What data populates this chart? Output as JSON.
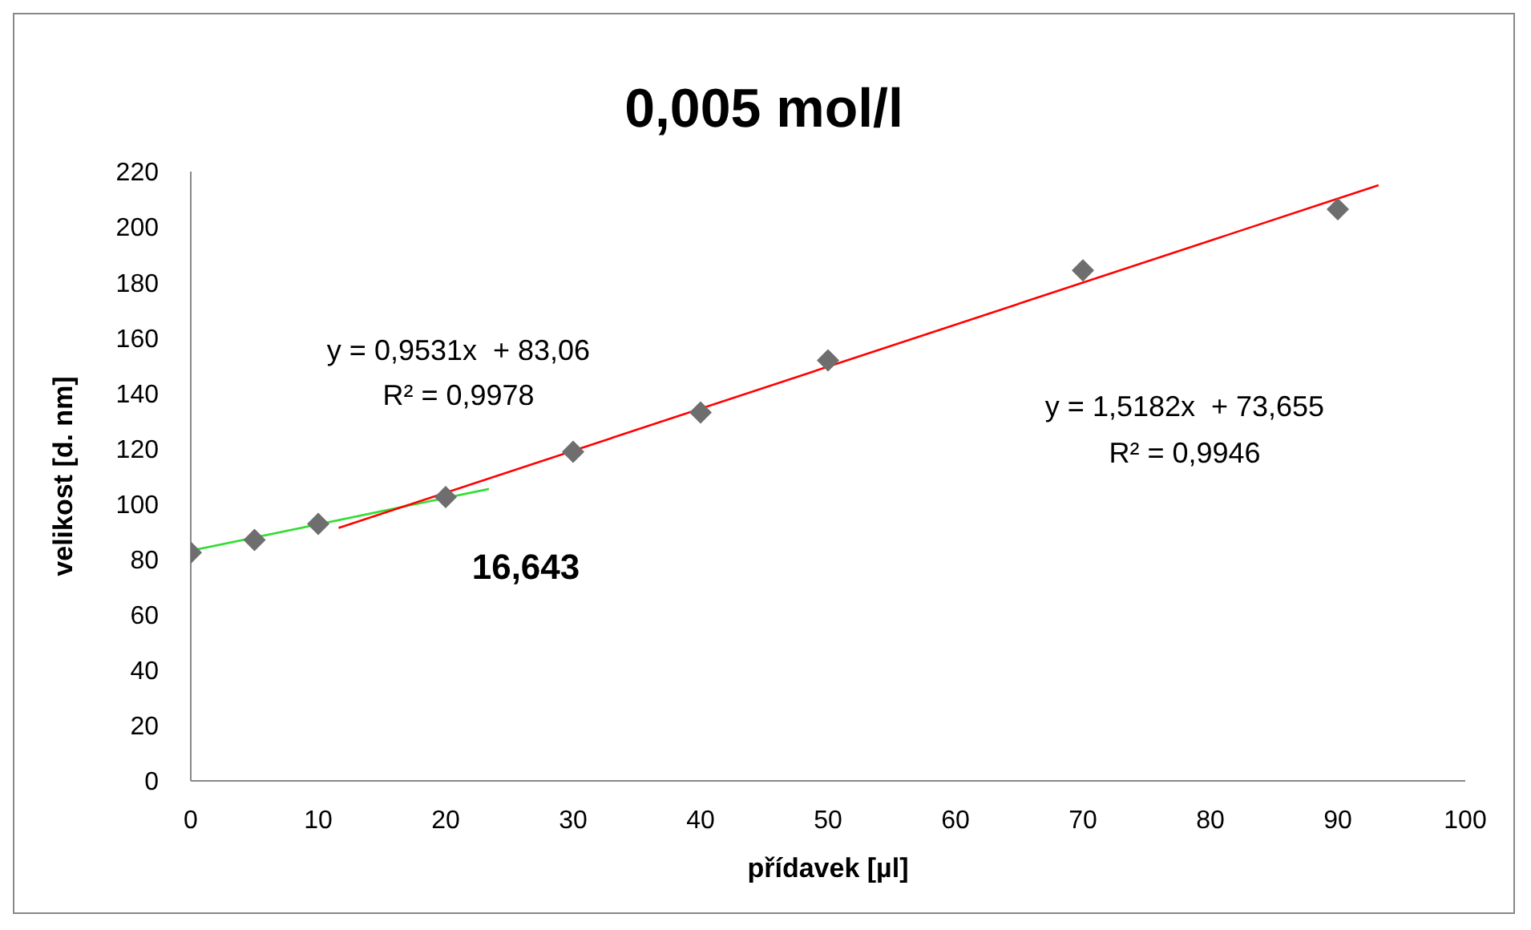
{
  "chart_data": {
    "type": "scatter",
    "title": "0,005 mol/l",
    "xlabel": "přídavek [µl]",
    "ylabel": "velikost [d. nm]",
    "xlim": [
      0,
      100
    ],
    "xticks": [
      0,
      10,
      20,
      30,
      40,
      50,
      60,
      70,
      80,
      90,
      100
    ],
    "ylim": [
      0,
      220
    ],
    "yticks": [
      0,
      20,
      40,
      60,
      80,
      100,
      120,
      140,
      160,
      180,
      200,
      220
    ],
    "grid": false,
    "marker": "diamond",
    "series": [
      {
        "type": "line",
        "color": "#33dd33",
        "marker": "none",
        "x": [
          0,
          23.4
        ],
        "values": [
          83.1,
          105.4
        ]
      },
      {
        "type": "line",
        "color": "#ff0000",
        "marker": "none",
        "x": [
          11.6,
          93.2
        ],
        "values": [
          91.3,
          215.1
        ]
      },
      {
        "color": "#6e6e6e",
        "x": [
          0,
          5,
          10,
          20,
          30,
          40,
          50,
          70,
          90
        ],
        "values": [
          82.4,
          87,
          92.8,
          102.5,
          118.8,
          133,
          151.8,
          184.3,
          206.4
        ]
      }
    ],
    "annotations": [
      "y = 0,9531x  + 83,06",
      "R² = 0,9978",
      "y = 1,5182x  + 73,655",
      "R² = 0,9946",
      "16,643"
    ]
  }
}
